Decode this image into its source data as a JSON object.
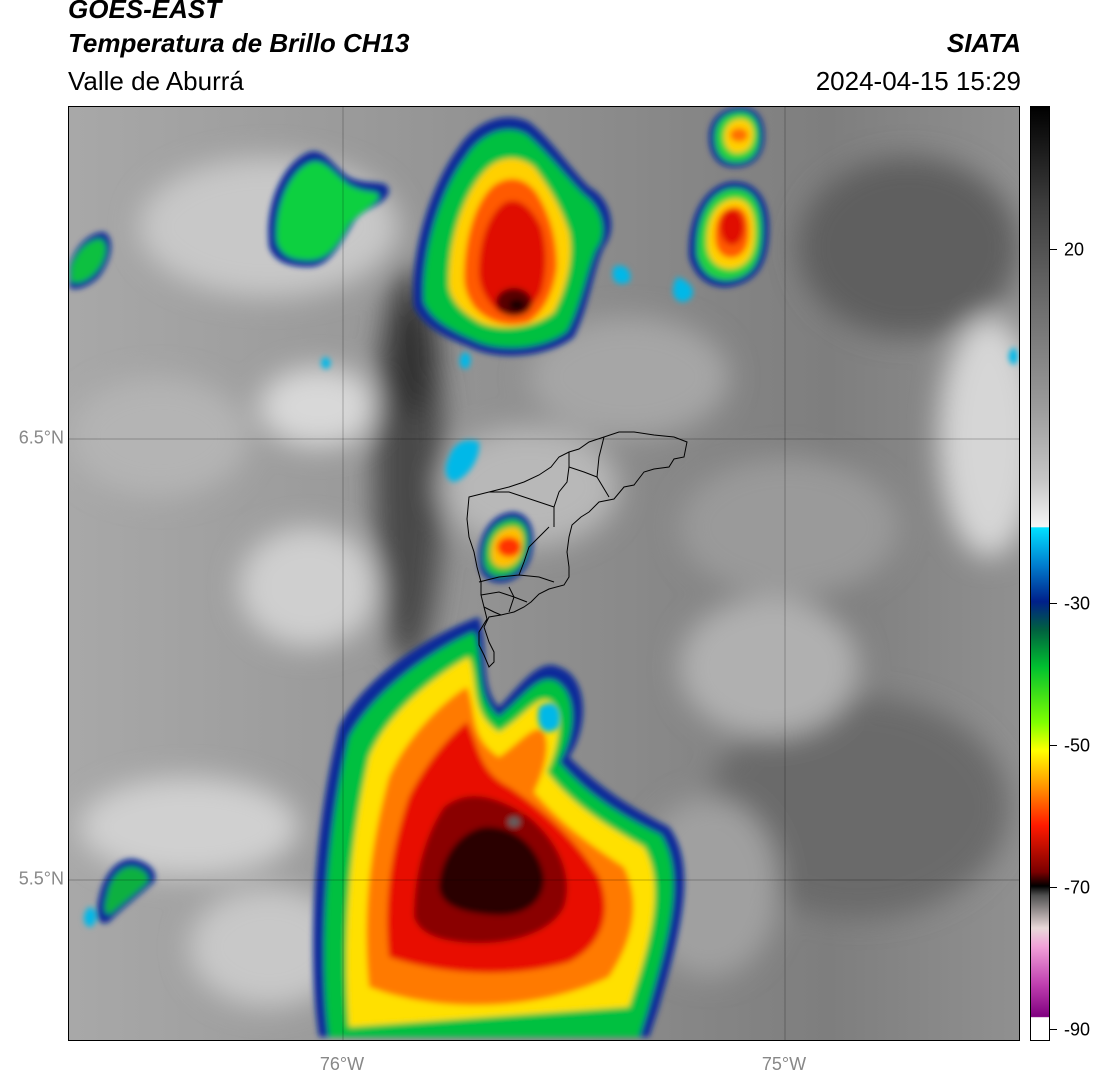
{
  "header": {
    "satellite": "GOES-EAST",
    "product": "Temperatura de Brillo CH13",
    "region": "Valle de Aburrá",
    "organization": "SIATA",
    "timestamp": "2024-04-15 15:29"
  },
  "map": {
    "lat_labels": [
      "6.5°N",
      "5.5°N"
    ],
    "lon_labels": [
      "76°W",
      "75°W"
    ]
  },
  "colorbar": {
    "ticks": [
      "20",
      "-30",
      "-50",
      "-70",
      "-90"
    ],
    "colors": {
      "cloud_free_gray": "#8a8a8a",
      "cyan": "#00e0ff",
      "blue": "#00208a",
      "green": "#00d000",
      "yellow": "#ffff00",
      "orange": "#ff8c00",
      "red": "#ff1a00",
      "dark_red": "#7a0000",
      "black": "#000000",
      "magenta": "#e040c0",
      "purple": "#800080"
    }
  }
}
